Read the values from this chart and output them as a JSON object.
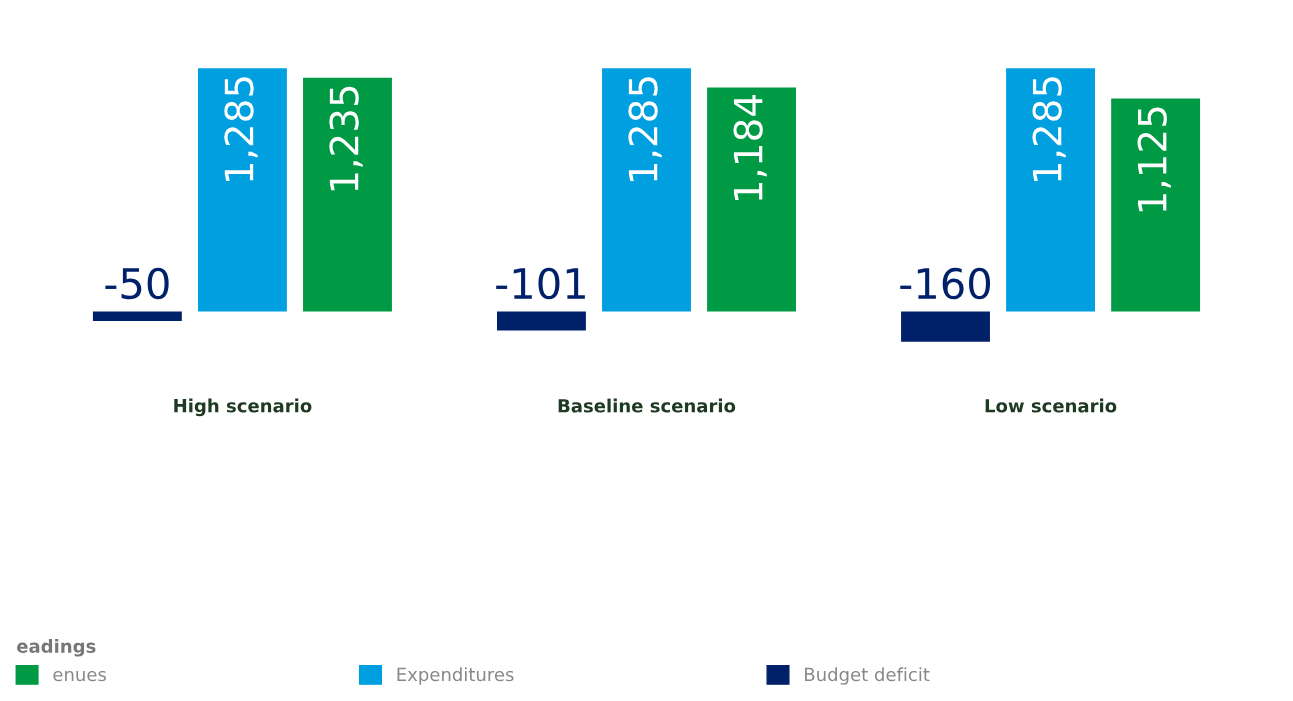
{
  "chart_data": {
    "type": "bar",
    "categories": [
      "High scenario",
      "Baseline scenario",
      "Low scenario"
    ],
    "series": [
      {
        "name": "Budget deficit",
        "color": "#002169",
        "values": [
          -50,
          -101,
          -160
        ],
        "value_labels": [
          "-50",
          "-101",
          "-160"
        ]
      },
      {
        "name": "Expenditures",
        "color": "#009fe0",
        "values": [
          1285,
          1285,
          1285
        ],
        "value_labels": [
          "1,285",
          "1,285",
          "1,285"
        ]
      },
      {
        "name": "enues",
        "color": "#009a44",
        "values": [
          1235,
          1184,
          1125
        ],
        "value_labels": [
          "1,235",
          "1,184",
          "1,125"
        ]
      }
    ],
    "legend": "bottom",
    "legend_title": "eadings"
  }
}
